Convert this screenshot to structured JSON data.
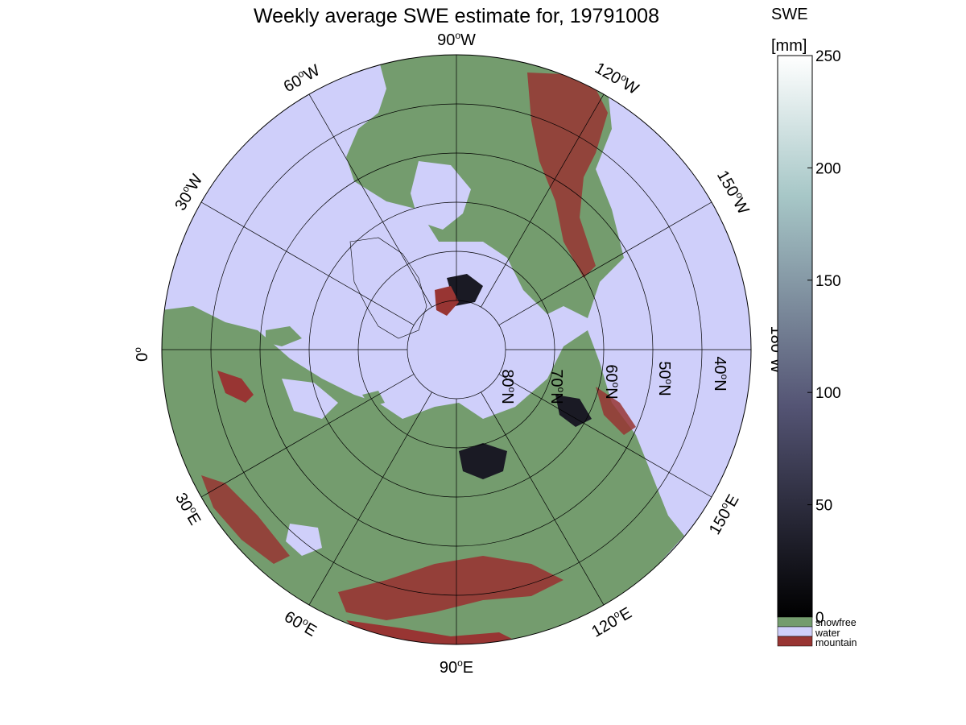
{
  "title": "Weekly average SWE estimate for, 19791008",
  "colorbar": {
    "label_line1": "SWE",
    "label_line2": "[mm]",
    "ticks": [
      "0",
      "50",
      "100",
      "150",
      "200",
      "250"
    ],
    "range": [
      0,
      250
    ],
    "colormap": "bone",
    "categories": [
      {
        "name": "snowfree",
        "color": "#749c6e"
      },
      {
        "name": "water",
        "color": "#cfcffa"
      },
      {
        "name": "mountain",
        "color": "#983533"
      }
    ]
  },
  "map": {
    "projection": "north-polar stereographic",
    "land_color": "#749c6e",
    "ocean_color": "#cfcffa",
    "mountain_color": "#983533",
    "snow_color_low": "#1a1a24",
    "meridian_labels": [
      {
        "deg": "90",
        "hemi": "W"
      },
      {
        "deg": "60",
        "hemi": "W"
      },
      {
        "deg": "30",
        "hemi": "W"
      },
      {
        "deg": "0",
        "hemi": ""
      },
      {
        "deg": "30",
        "hemi": "E"
      },
      {
        "deg": "60",
        "hemi": "E"
      },
      {
        "deg": "90",
        "hemi": "E"
      },
      {
        "deg": "120",
        "hemi": "E"
      },
      {
        "deg": "150",
        "hemi": "E"
      },
      {
        "deg": "180",
        "hemi": "W"
      },
      {
        "deg": "150",
        "hemi": "W"
      },
      {
        "deg": "120",
        "hemi": "W"
      }
    ],
    "parallel_labels": [
      {
        "deg": "80",
        "hemi": "N"
      },
      {
        "deg": "70",
        "hemi": "N"
      },
      {
        "deg": "60",
        "hemi": "N"
      },
      {
        "deg": "50",
        "hemi": "N"
      },
      {
        "deg": "40",
        "hemi": "N"
      }
    ]
  }
}
